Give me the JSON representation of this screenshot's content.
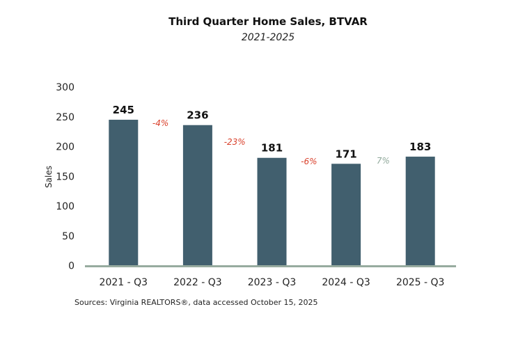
{
  "chart_data": {
    "type": "bar",
    "title": "Third Quarter Home Sales, BTVAR",
    "subtitle": "2021-2025",
    "categories": [
      "2021 - Q3",
      "2022 - Q3",
      "2023 - Q3",
      "2024 - Q3",
      "2025 - Q3"
    ],
    "values": [
      245,
      236,
      181,
      171,
      183
    ],
    "changes": [
      {
        "label": "-4%",
        "direction": "down"
      },
      {
        "label": "-23%",
        "direction": "down"
      },
      {
        "label": "-6%",
        "direction": "down"
      },
      {
        "label": "7%",
        "direction": "up"
      }
    ],
    "xlabel": "",
    "ylabel": "Sales",
    "ylim": [
      0,
      300
    ],
    "yticks": [
      0,
      50,
      100,
      150,
      200,
      250,
      300
    ],
    "grid": false,
    "legend": "none",
    "source": "Sources: Virginia REALTORS®, data accessed October 15, 2025",
    "colors": {
      "bar": "#415f6e",
      "axis": "#97ab9f",
      "negative": "#d9402b",
      "positive": "#8fa89a"
    }
  }
}
